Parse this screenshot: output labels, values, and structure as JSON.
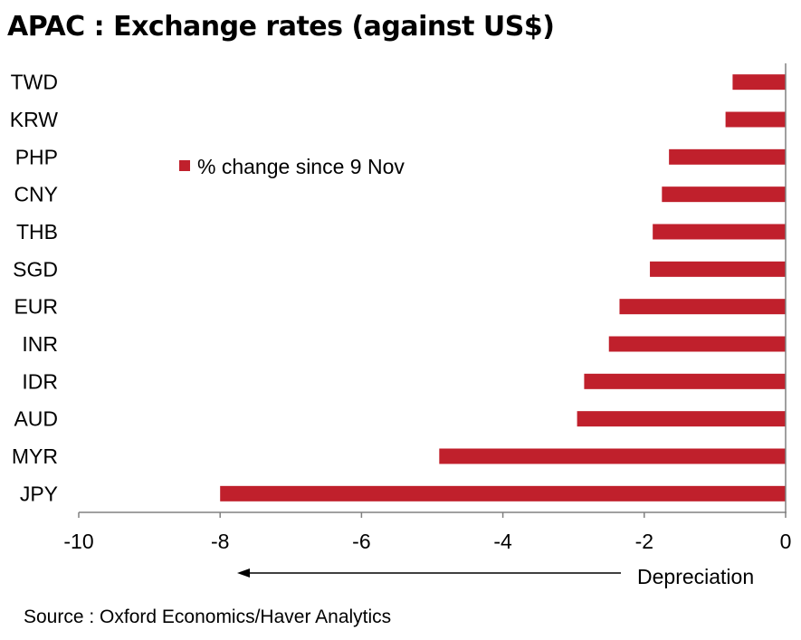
{
  "title": "APAC : Exchange rates (against US$)",
  "source": "Source : Oxford Economics/Haver Analytics",
  "chart_data": {
    "type": "bar",
    "orientation": "horizontal",
    "categories": [
      "TWD",
      "KRW",
      "PHP",
      "CNY",
      "THB",
      "SGD",
      "EUR",
      "INR",
      "IDR",
      "AUD",
      "MYR",
      "JPY"
    ],
    "series": [
      {
        "name": "% change since 9 Nov",
        "color": "#c0202c",
        "values": [
          -0.75,
          -0.85,
          -1.65,
          -1.75,
          -1.88,
          -1.92,
          -2.35,
          -2.5,
          -2.85,
          -2.95,
          -4.9,
          -8.0
        ]
      }
    ],
    "xlim": [
      -10,
      0
    ],
    "xticks": [
      "-10",
      "-8",
      "-6",
      "-4",
      "-2",
      "0"
    ],
    "grid": false,
    "legend": "upper-left inside plot",
    "annotation": {
      "text": "Depreciation",
      "arrow": "left"
    }
  }
}
